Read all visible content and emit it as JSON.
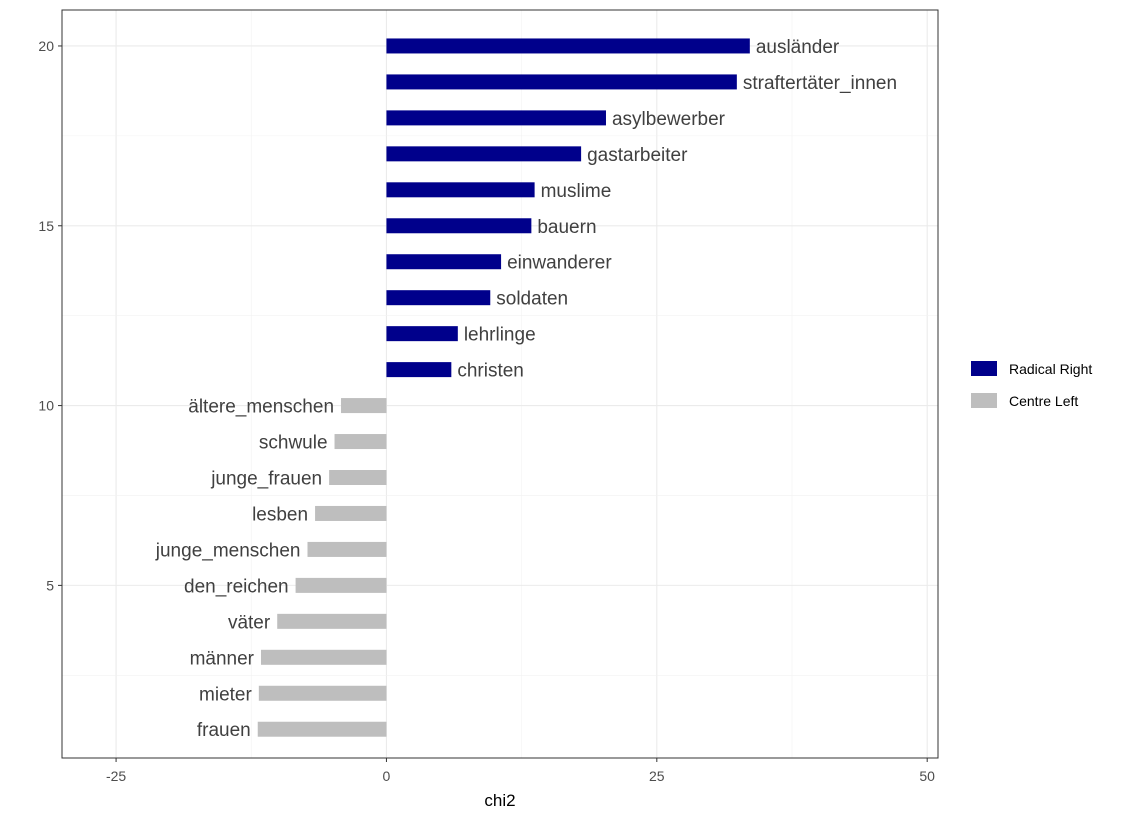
{
  "chart_data": {
    "type": "bar",
    "orientation": "horizontal",
    "xlabel": "chi2",
    "ylabel": "",
    "xlim": [
      -30,
      51
    ],
    "ylim": [
      0.2,
      21
    ],
    "xticks": [
      -25,
      0,
      25,
      50
    ],
    "yticks": [
      5,
      10,
      15,
      20
    ],
    "grid": true,
    "legend_position": "right",
    "series": [
      {
        "name": "Radical Right",
        "color": "#00008B"
      },
      {
        "name": "Centre Left",
        "color": "#BEBEBE"
      }
    ],
    "bars": [
      {
        "y": 20,
        "label": "ausländer",
        "value": 33.6,
        "series": "Radical Right"
      },
      {
        "y": 19,
        "label": "straftertäter_innen",
        "value": 32.4,
        "series": "Radical Right"
      },
      {
        "y": 18,
        "label": "asylbewerber",
        "value": 20.3,
        "series": "Radical Right"
      },
      {
        "y": 17,
        "label": "gastarbeiter",
        "value": 18.0,
        "series": "Radical Right"
      },
      {
        "y": 16,
        "label": "muslime",
        "value": 13.7,
        "series": "Radical Right"
      },
      {
        "y": 15,
        "label": "bauern",
        "value": 13.4,
        "series": "Radical Right"
      },
      {
        "y": 14,
        "label": "einwanderer",
        "value": 10.6,
        "series": "Radical Right"
      },
      {
        "y": 13,
        "label": "soldaten",
        "value": 9.6,
        "series": "Radical Right"
      },
      {
        "y": 12,
        "label": "lehrlinge",
        "value": 6.6,
        "series": "Radical Right"
      },
      {
        "y": 11,
        "label": "christen",
        "value": 6.0,
        "series": "Radical Right"
      },
      {
        "y": 10,
        "label": "ältere_menschen",
        "value": -4.2,
        "series": "Centre Left"
      },
      {
        "y": 9,
        "label": "schwule",
        "value": -4.8,
        "series": "Centre Left"
      },
      {
        "y": 8,
        "label": "junge_frauen",
        "value": -5.3,
        "series": "Centre Left"
      },
      {
        "y": 7,
        "label": "lesben",
        "value": -6.6,
        "series": "Centre Left"
      },
      {
        "y": 6,
        "label": "junge_menschen",
        "value": -7.3,
        "series": "Centre Left"
      },
      {
        "y": 5,
        "label": "den_reichen",
        "value": -8.4,
        "series": "Centre Left"
      },
      {
        "y": 4,
        "label": "väter",
        "value": -10.1,
        "series": "Centre Left"
      },
      {
        "y": 3,
        "label": "männer",
        "value": -11.6,
        "series": "Centre Left"
      },
      {
        "y": 2,
        "label": "mieter",
        "value": -11.8,
        "series": "Centre Left"
      },
      {
        "y": 1,
        "label": "frauen",
        "value": -11.9,
        "series": "Centre Left"
      }
    ]
  }
}
